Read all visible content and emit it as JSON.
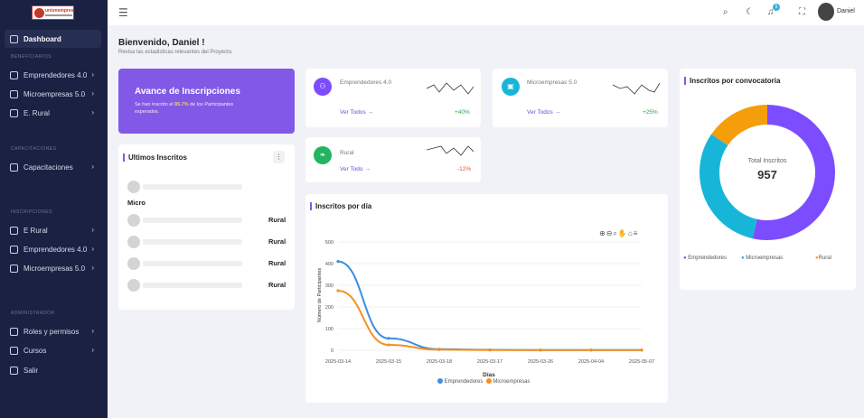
{
  "sidebar": {
    "logo_text": "unionempresarial",
    "dashboard": "Dashboard",
    "sections": {
      "beneficiarios": "BENEFICIARIOS",
      "capacitaciones": "CAPACITACIONES",
      "inscripciones": "INSCRIPCIONES",
      "administrador": "ADMINISTRADOR"
    },
    "items": {
      "emprendedores": "Emprendedores 4.0",
      "microempresas": "Microempresas 5.0",
      "erural": "E. Rural",
      "capacitaciones": "Capacitaciones",
      "ins_erural": "E Rural",
      "ins_emprendedores": "Emprendedores 4.0",
      "ins_microempresas": "Microempresas 5.0",
      "roles": "Roles y permisos",
      "cursos": "Cursos",
      "salir": "Salir"
    }
  },
  "topbar": {
    "notifications": "5",
    "user": "Daniel"
  },
  "page": {
    "title": "Bienvenido, Daniel !",
    "subtitle": "Revisa las estadisticas relevantes del Proyecto."
  },
  "avance": {
    "title": "Avance de Inscripciones",
    "text_a": "Se han Inscrito el ",
    "percent": "95.7%",
    "text_b": " de los Participantes esperados."
  },
  "stats": {
    "emp": {
      "name": "Emprendedores 4.0",
      "link": "Ver Todos",
      "pct": "+40%"
    },
    "mic": {
      "name": "Microempresas 5.0",
      "link": "Ver Todos",
      "pct": "+25%"
    },
    "rur": {
      "name": "Rural",
      "link": "Ver Todo",
      "pct": "-12%"
    }
  },
  "ultimos": {
    "title": "Ultimos Inscritos",
    "row2_type": "Micro",
    "types": [
      "Rural",
      "Rural",
      "Rural",
      "Rural"
    ]
  },
  "donut": {
    "title": "Inscritos por convocatoria",
    "center_label": "Total Inscritos",
    "total": "957",
    "legend": [
      "Emprendedores",
      "Microempresas",
      "Rural"
    ]
  },
  "chart_data": {
    "type": "line",
    "title": "Inscritos por día",
    "xlabel": "Dias",
    "ylabel": "Número de Participantes",
    "categories": [
      "2025-03-14",
      "2025-03-15",
      "2025-03-18",
      "2025-03-17",
      "2025-03-26",
      "2025-04-04",
      "2025-05-07"
    ],
    "ylim": [
      0,
      500
    ],
    "yticks": [
      "500",
      "400",
      "300",
      "200",
      "100",
      "0"
    ],
    "series": [
      {
        "name": "Emprendedores",
        "values": [
          410,
          55,
          5,
          2,
          1,
          1,
          1
        ]
      },
      {
        "name": "Microempresas",
        "values": [
          275,
          25,
          3,
          1,
          1,
          1,
          1
        ]
      }
    ]
  },
  "colors": {
    "purple": "#8258e6",
    "emp": "#7c4dff",
    "mic": "#17b6d8",
    "rur": "#f59e0b",
    "line_emp": "#3b8fde",
    "line_mic": "#f5901e"
  }
}
